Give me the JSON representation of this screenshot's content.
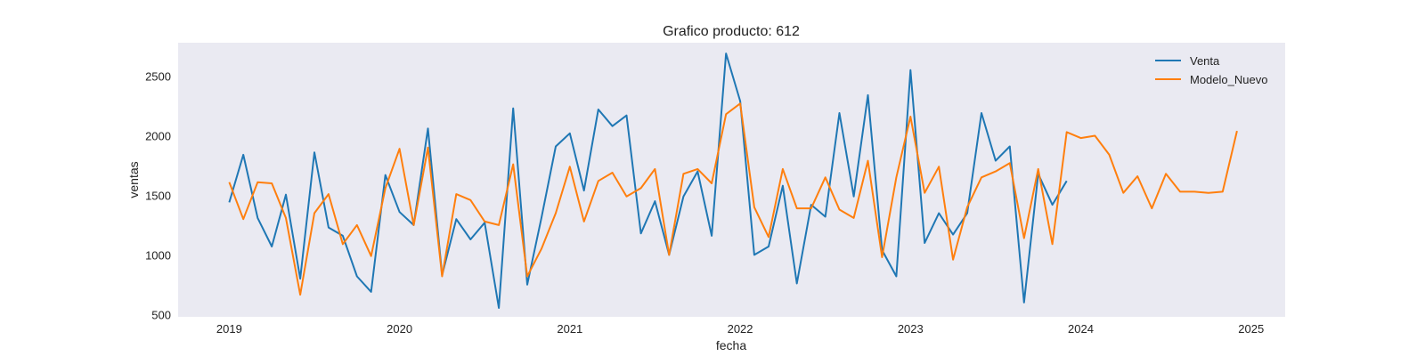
{
  "chart_data": {
    "type": "line",
    "title": "Grafico producto: 612",
    "xlabel": "fecha",
    "ylabel": "ventas",
    "xlim": [
      2018.7,
      2025.2
    ],
    "ylim": [
      480,
      2780
    ],
    "x_ticks": [
      {
        "value": 2019,
        "label": "2019"
      },
      {
        "value": 2020,
        "label": "2020"
      },
      {
        "value": 2021,
        "label": "2021"
      },
      {
        "value": 2022,
        "label": "2022"
      },
      {
        "value": 2023,
        "label": "2023"
      },
      {
        "value": 2024,
        "label": "2024"
      },
      {
        "value": 2025,
        "label": "2025"
      }
    ],
    "y_ticks": [
      {
        "value": 500,
        "label": "500"
      },
      {
        "value": 1000,
        "label": "1000"
      },
      {
        "value": 1500,
        "label": "1500"
      },
      {
        "value": 2000,
        "label": "2000"
      },
      {
        "value": 2500,
        "label": "2500"
      }
    ],
    "grid": false,
    "legend_position": "top-right",
    "series": [
      {
        "name": "Venta",
        "color": "#1f77b4",
        "x": [
          2019.0,
          2019.083,
          2019.167,
          2019.25,
          2019.333,
          2019.417,
          2019.5,
          2019.583,
          2019.667,
          2019.75,
          2019.833,
          2019.917,
          2020.0,
          2020.083,
          2020.167,
          2020.25,
          2020.333,
          2020.417,
          2020.5,
          2020.583,
          2020.667,
          2020.75,
          2020.833,
          2020.917,
          2021.0,
          2021.083,
          2021.167,
          2021.25,
          2021.333,
          2021.417,
          2021.5,
          2021.583,
          2021.667,
          2021.75,
          2021.833,
          2021.917,
          2022.0,
          2022.083,
          2022.167,
          2022.25,
          2022.333,
          2022.417,
          2022.5,
          2022.583,
          2022.667,
          2022.75,
          2022.833,
          2022.917,
          2023.0,
          2023.083,
          2023.167,
          2023.25,
          2023.333,
          2023.417,
          2023.5,
          2023.583,
          2023.667,
          2023.75,
          2023.833,
          2023.917
        ],
        "values": [
          1440,
          1840,
          1310,
          1070,
          1505,
          800,
          1860,
          1230,
          1160,
          820,
          690,
          1670,
          1360,
          1250,
          2060,
          830,
          1300,
          1130,
          1270,
          555,
          2230,
          750,
          1310,
          1910,
          2020,
          1540,
          2220,
          2080,
          2170,
          1180,
          1450,
          1000,
          1490,
          1700,
          1160,
          2690,
          2290,
          1000,
          1070,
          1580,
          760,
          1420,
          1320,
          2190,
          1490,
          2340,
          1040,
          820,
          2550,
          1100,
          1350,
          1170,
          1350,
          2190,
          1790,
          1910,
          600,
          1680,
          1420,
          1620
        ]
      },
      {
        "name": "Modelo_Nuevo",
        "color": "#ff7f0e",
        "x": [
          2019.0,
          2019.083,
          2019.167,
          2019.25,
          2019.333,
          2019.417,
          2019.5,
          2019.583,
          2019.667,
          2019.75,
          2019.833,
          2019.917,
          2020.0,
          2020.083,
          2020.167,
          2020.25,
          2020.333,
          2020.417,
          2020.5,
          2020.583,
          2020.667,
          2020.75,
          2020.833,
          2020.917,
          2021.0,
          2021.083,
          2021.167,
          2021.25,
          2021.333,
          2021.417,
          2021.5,
          2021.583,
          2021.667,
          2021.75,
          2021.833,
          2021.917,
          2022.0,
          2022.083,
          2022.167,
          2022.25,
          2022.333,
          2022.417,
          2022.5,
          2022.583,
          2022.667,
          2022.75,
          2022.833,
          2022.917,
          2023.0,
          2023.083,
          2023.167,
          2023.25,
          2023.333,
          2023.417,
          2023.5,
          2023.583,
          2023.667,
          2023.75,
          2023.833,
          2023.917,
          2024.0,
          2024.083,
          2024.167,
          2024.25,
          2024.333,
          2024.417,
          2024.5,
          2024.583,
          2024.667,
          2024.75,
          2024.833,
          2024.917
        ],
        "values": [
          1610,
          1300,
          1610,
          1600,
          1310,
          665,
          1350,
          1510,
          1090,
          1250,
          990,
          1560,
          1890,
          1250,
          1900,
          820,
          1510,
          1460,
          1280,
          1250,
          1760,
          820,
          1050,
          1350,
          1740,
          1280,
          1620,
          1690,
          1490,
          1560,
          1720,
          1000,
          1680,
          1720,
          1600,
          2180,
          2270,
          1400,
          1150,
          1720,
          1390,
          1390,
          1650,
          1380,
          1310,
          1790,
          980,
          1650,
          2160,
          1520,
          1740,
          960,
          1400,
          1650,
          1700,
          1770,
          1140,
          1720,
          1090,
          2030,
          1980,
          2000,
          1840,
          1520,
          1660,
          1390,
          1680,
          1530,
          1530,
          1520,
          1530,
          2040
        ]
      }
    ]
  }
}
